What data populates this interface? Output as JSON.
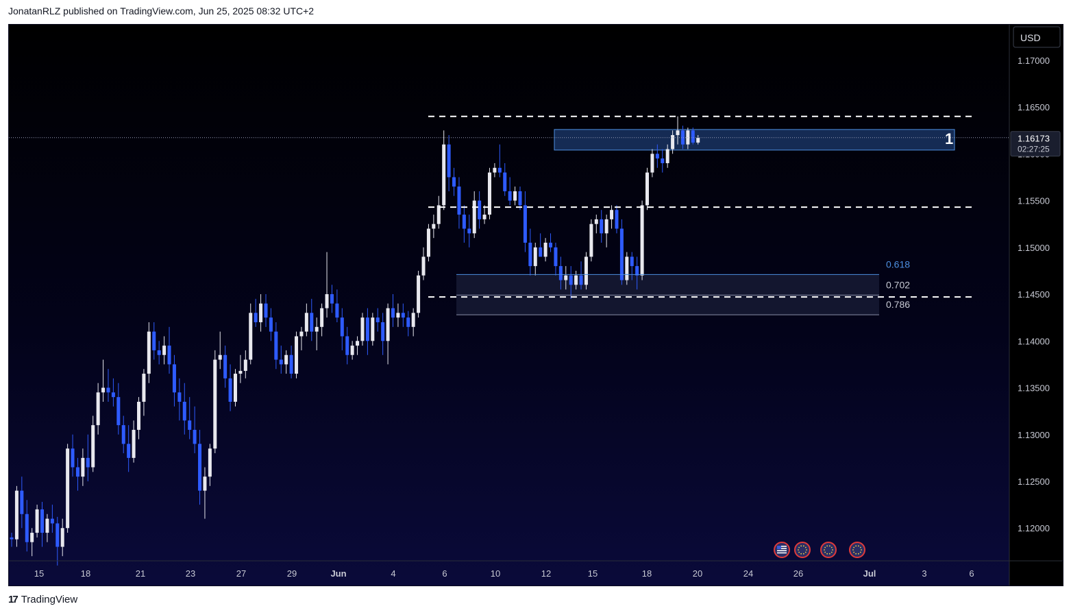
{
  "header": {
    "text": "JonatanRLZ published on TradingView.com, Jun 25, 2025 08:32 UTC+2"
  },
  "footer": {
    "logo": "17",
    "brand": "TradingView"
  },
  "colors": {
    "bull": "#e8e8ee",
    "bear": "#2e5bff",
    "zone_fill": "#1c3a6e",
    "zone_border": "#4d8fe0",
    "fib_zone_fill": "#151832",
    "fib_618": "#4d8fe0",
    "axis_text": "#c8cad4",
    "dashed": "#ffffff"
  },
  "chart_data": {
    "type": "candlestick",
    "symbol_currency": "USD",
    "ylim": [
      1.1165,
      1.1738
    ],
    "y_ticks": [
      "1.17000",
      "1.16500",
      "1.16000",
      "1.15500",
      "1.15000",
      "1.14500",
      "1.14000",
      "1.13500",
      "1.13000",
      "1.12500",
      "1.12000"
    ],
    "x_ticks": [
      "15",
      "18",
      "21",
      "23",
      "27",
      "29",
      "Jun",
      "4",
      "6",
      "10",
      "12",
      "15",
      "18",
      "20",
      "24",
      "26",
      "Jul",
      "3",
      "6"
    ],
    "last_price": "1.16173",
    "countdown": "02:27:25",
    "levels": [
      {
        "kind": "dashed",
        "price": 1.164
      },
      {
        "kind": "dashed",
        "price": 1.1543
      },
      {
        "kind": "dashed",
        "price": 1.1447
      }
    ],
    "resistance_zone": {
      "top": 1.1626,
      "bottom": 1.1604,
      "label": "1"
    },
    "fib_levels": [
      {
        "label": "0.618",
        "price": 1.1471
      },
      {
        "label": "0.702",
        "price": 1.1449
      },
      {
        "label": "0.786",
        "price": 1.1428
      }
    ],
    "event_icons": [
      "us-flag-icon",
      "eu-flag-icon",
      "eu-flag-icon",
      "eu-flag-icon"
    ],
    "candles": [
      [
        1.119,
        1.1195,
        1.118,
        1.1188
      ],
      [
        1.1188,
        1.1245,
        1.118,
        1.124
      ],
      [
        1.124,
        1.1255,
        1.12,
        1.1215
      ],
      [
        1.1215,
        1.123,
        1.1175,
        1.1185
      ],
      [
        1.1185,
        1.12,
        1.117,
        1.1195
      ],
      [
        1.1195,
        1.1225,
        1.119,
        1.122
      ],
      [
        1.122,
        1.1228,
        1.118,
        1.1195
      ],
      [
        1.1195,
        1.1215,
        1.1185,
        1.121
      ],
      [
        1.121,
        1.1225,
        1.1195,
        1.1205
      ],
      [
        1.1205,
        1.1212,
        1.116,
        1.118
      ],
      [
        1.118,
        1.121,
        1.117,
        1.12
      ],
      [
        1.12,
        1.129,
        1.1195,
        1.1285
      ],
      [
        1.1285,
        1.13,
        1.1255,
        1.1265
      ],
      [
        1.1265,
        1.1275,
        1.124,
        1.1255
      ],
      [
        1.1255,
        1.1285,
        1.1245,
        1.1275
      ],
      [
        1.1275,
        1.13,
        1.125,
        1.1265
      ],
      [
        1.1265,
        1.132,
        1.126,
        1.131
      ],
      [
        1.131,
        1.1355,
        1.13,
        1.1345
      ],
      [
        1.1345,
        1.138,
        1.1335,
        1.135
      ],
      [
        1.135,
        1.137,
        1.1335,
        1.1345
      ],
      [
        1.1345,
        1.136,
        1.133,
        1.134
      ],
      [
        1.134,
        1.1355,
        1.13,
        1.131
      ],
      [
        1.131,
        1.132,
        1.128,
        1.129
      ],
      [
        1.129,
        1.131,
        1.126,
        1.1275
      ],
      [
        1.1275,
        1.1315,
        1.127,
        1.1305
      ],
      [
        1.1305,
        1.134,
        1.1295,
        1.1335
      ],
      [
        1.1335,
        1.137,
        1.132,
        1.1365
      ],
      [
        1.1365,
        1.142,
        1.1355,
        1.141
      ],
      [
        1.141,
        1.142,
        1.138,
        1.139
      ],
      [
        1.139,
        1.14,
        1.1375,
        1.1385
      ],
      [
        1.1385,
        1.1405,
        1.1375,
        1.1395
      ],
      [
        1.1395,
        1.1415,
        1.1365,
        1.1375
      ],
      [
        1.1375,
        1.1385,
        1.133,
        1.1345
      ],
      [
        1.1345,
        1.136,
        1.1315,
        1.1335
      ],
      [
        1.1335,
        1.1355,
        1.13,
        1.1315
      ],
      [
        1.1315,
        1.134,
        1.1295,
        1.1305
      ],
      [
        1.1305,
        1.133,
        1.128,
        1.129
      ],
      [
        1.129,
        1.1305,
        1.1225,
        1.124
      ],
      [
        1.124,
        1.1265,
        1.121,
        1.1255
      ],
      [
        1.1255,
        1.129,
        1.1245,
        1.1285
      ],
      [
        1.1285,
        1.139,
        1.128,
        1.138
      ],
      [
        1.138,
        1.141,
        1.137,
        1.1385
      ],
      [
        1.1385,
        1.1395,
        1.135,
        1.136
      ],
      [
        1.136,
        1.1375,
        1.1325,
        1.1335
      ],
      [
        1.1335,
        1.137,
        1.133,
        1.1365
      ],
      [
        1.1365,
        1.1385,
        1.1355,
        1.1368
      ],
      [
        1.1368,
        1.139,
        1.136,
        1.138
      ],
      [
        1.138,
        1.144,
        1.1375,
        1.143
      ],
      [
        1.143,
        1.1445,
        1.1415,
        1.142
      ],
      [
        1.142,
        1.145,
        1.141,
        1.144
      ],
      [
        1.144,
        1.145,
        1.1415,
        1.1425
      ],
      [
        1.1425,
        1.1435,
        1.14,
        1.141
      ],
      [
        1.141,
        1.142,
        1.137,
        1.138
      ],
      [
        1.138,
        1.1395,
        1.1365,
        1.1375
      ],
      [
        1.1375,
        1.139,
        1.1365,
        1.1385
      ],
      [
        1.1385,
        1.1395,
        1.136,
        1.1365
      ],
      [
        1.1365,
        1.141,
        1.136,
        1.1405
      ],
      [
        1.1405,
        1.1415,
        1.139,
        1.141
      ],
      [
        1.141,
        1.144,
        1.1405,
        1.143
      ],
      [
        1.143,
        1.1445,
        1.14,
        1.141
      ],
      [
        1.141,
        1.1425,
        1.139,
        1.1415
      ],
      [
        1.1415,
        1.144,
        1.1405,
        1.1435
      ],
      [
        1.1435,
        1.1495,
        1.1425,
        1.145
      ],
      [
        1.145,
        1.146,
        1.143,
        1.144
      ],
      [
        1.144,
        1.1455,
        1.142,
        1.1425
      ],
      [
        1.1425,
        1.1435,
        1.139,
        1.1405
      ],
      [
        1.1405,
        1.1415,
        1.1375,
        1.1385
      ],
      [
        1.1385,
        1.14,
        1.138,
        1.1395
      ],
      [
        1.1395,
        1.1405,
        1.1385,
        1.14
      ],
      [
        1.14,
        1.143,
        1.1395,
        1.1425
      ],
      [
        1.1425,
        1.1435,
        1.1385,
        1.14
      ],
      [
        1.14,
        1.143,
        1.1395,
        1.1425
      ],
      [
        1.1425,
        1.1435,
        1.141,
        1.142
      ],
      [
        1.142,
        1.143,
        1.1385,
        1.14
      ],
      [
        1.14,
        1.144,
        1.1375,
        1.1435
      ],
      [
        1.1435,
        1.145,
        1.1415,
        1.1425
      ],
      [
        1.1425,
        1.144,
        1.1415,
        1.143
      ],
      [
        1.143,
        1.144,
        1.1415,
        1.1425
      ],
      [
        1.1425,
        1.1432,
        1.1405,
        1.1415
      ],
      [
        1.1415,
        1.1435,
        1.1405,
        1.143
      ],
      [
        1.143,
        1.1475,
        1.1425,
        1.147
      ],
      [
        1.147,
        1.15,
        1.1465,
        1.149
      ],
      [
        1.149,
        1.1525,
        1.1485,
        1.152
      ],
      [
        1.152,
        1.1535,
        1.151,
        1.1525
      ],
      [
        1.1525,
        1.1555,
        1.152,
        1.1545
      ],
      [
        1.1545,
        1.1625,
        1.154,
        1.161
      ],
      [
        1.161,
        1.162,
        1.156,
        1.1575
      ],
      [
        1.1575,
        1.1585,
        1.1555,
        1.1565
      ],
      [
        1.1565,
        1.1575,
        1.152,
        1.1535
      ],
      [
        1.1535,
        1.1545,
        1.1505,
        1.152
      ],
      [
        1.152,
        1.1535,
        1.15,
        1.1515
      ],
      [
        1.1515,
        1.156,
        1.151,
        1.155
      ],
      [
        1.155,
        1.156,
        1.152,
        1.153
      ],
      [
        1.153,
        1.1545,
        1.1525,
        1.1535
      ],
      [
        1.1535,
        1.1585,
        1.153,
        1.158
      ],
      [
        1.158,
        1.159,
        1.1575,
        1.1585
      ],
      [
        1.1585,
        1.161,
        1.1575,
        1.158
      ],
      [
        1.158,
        1.159,
        1.1555,
        1.156
      ],
      [
        1.156,
        1.1575,
        1.1545,
        1.155
      ],
      [
        1.155,
        1.1565,
        1.1545,
        1.156
      ],
      [
        1.156,
        1.1565,
        1.154,
        1.1545
      ],
      [
        1.1545,
        1.156,
        1.1495,
        1.1505
      ],
      [
        1.1505,
        1.152,
        1.147,
        1.148
      ],
      [
        1.148,
        1.1505,
        1.147,
        1.15
      ],
      [
        1.15,
        1.1515,
        1.149,
        1.149
      ],
      [
        1.149,
        1.151,
        1.1485,
        1.1505
      ],
      [
        1.1505,
        1.1515,
        1.1495,
        1.15
      ],
      [
        1.15,
        1.1505,
        1.147,
        1.148
      ],
      [
        1.148,
        1.149,
        1.1455,
        1.1465
      ],
      [
        1.1465,
        1.148,
        1.1455,
        1.147
      ],
      [
        1.147,
        1.148,
        1.1445,
        1.146
      ],
      [
        1.146,
        1.1475,
        1.1455,
        1.147
      ],
      [
        1.147,
        1.1485,
        1.1455,
        1.146
      ],
      [
        1.146,
        1.1495,
        1.1455,
        1.149
      ],
      [
        1.149,
        1.153,
        1.1485,
        1.1525
      ],
      [
        1.1525,
        1.1535,
        1.1515,
        1.153
      ],
      [
        1.153,
        1.154,
        1.1505,
        1.1515
      ],
      [
        1.1515,
        1.1535,
        1.15,
        1.153
      ],
      [
        1.153,
        1.1545,
        1.152,
        1.154
      ],
      [
        1.154,
        1.1545,
        1.1515,
        1.152
      ],
      [
        1.152,
        1.153,
        1.146,
        1.1465
      ],
      [
        1.1465,
        1.1495,
        1.146,
        1.149
      ],
      [
        1.149,
        1.1495,
        1.1465,
        1.148
      ],
      [
        1.148,
        1.149,
        1.1455,
        1.147
      ],
      [
        1.147,
        1.155,
        1.1465,
        1.1545
      ],
      [
        1.1545,
        1.1585,
        1.154,
        1.158
      ],
      [
        1.158,
        1.1605,
        1.1575,
        1.16
      ],
      [
        1.16,
        1.161,
        1.1585,
        1.1595
      ],
      [
        1.1595,
        1.1605,
        1.158,
        1.159
      ],
      [
        1.159,
        1.161,
        1.1585,
        1.1605
      ],
      [
        1.1605,
        1.1625,
        1.16,
        1.162
      ],
      [
        1.162,
        1.164,
        1.161,
        1.1625
      ],
      [
        1.1625,
        1.163,
        1.1605,
        1.161
      ],
      [
        1.161,
        1.1628,
        1.1605,
        1.1625
      ],
      [
        1.1625,
        1.1628,
        1.161,
        1.1612
      ],
      [
        1.1612,
        1.162,
        1.161,
        1.1617
      ]
    ]
  }
}
